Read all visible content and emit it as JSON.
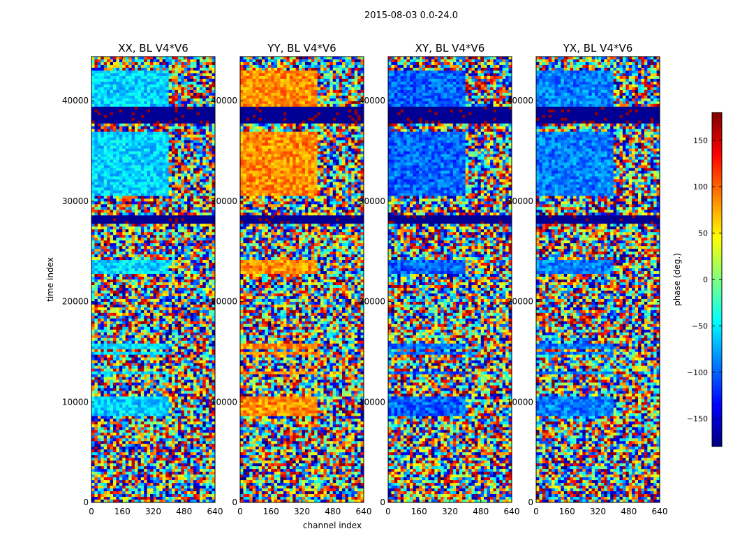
{
  "chart_data": {
    "type": "heatmap",
    "suptitle": "2015-08-03 0.0-24.0",
    "xlabel": "channel index",
    "ylabel": "time index",
    "xlim": [
      0,
      640
    ],
    "ylim": [
      0,
      44400
    ],
    "xticks": [
      0,
      160,
      320,
      480,
      640
    ],
    "xtick_labels": [
      "0",
      "160",
      "320",
      "480",
      "640"
    ],
    "yticks": [
      0,
      10000,
      20000,
      30000,
      40000
    ],
    "ytick_labels": [
      "0",
      "10000",
      "20000",
      "30000",
      "40000"
    ],
    "panels": [
      {
        "title": "XX, BL V4*V6",
        "mean_phase": -60
      },
      {
        "title": "YY, BL V4*V6",
        "mean_phase": 85
      },
      {
        "title": "XY, BL V4*V6",
        "mean_phase": -100
      },
      {
        "title": "YX, BL V4*V6",
        "mean_phase": -90
      }
    ],
    "flagged_time_bands": [
      [
        27700,
        28700
      ],
      [
        37800,
        39400
      ]
    ],
    "coherent_time_bands": [
      [
        8500,
        10600
      ],
      [
        12800,
        13000
      ],
      [
        14700,
        15000
      ],
      [
        15200,
        15900
      ],
      [
        22700,
        24100
      ],
      [
        30500,
        37000
      ],
      [
        39500,
        43000
      ]
    ],
    "colorbar": {
      "label": "phase (deg.)",
      "range": [
        -180,
        180
      ],
      "ticks": [
        150,
        100,
        50,
        0,
        -50,
        -100,
        -150
      ],
      "tick_labels": [
        "150",
        "100",
        "50",
        "0",
        "−50",
        "−100",
        "−150"
      ],
      "colormap": "jet"
    }
  }
}
